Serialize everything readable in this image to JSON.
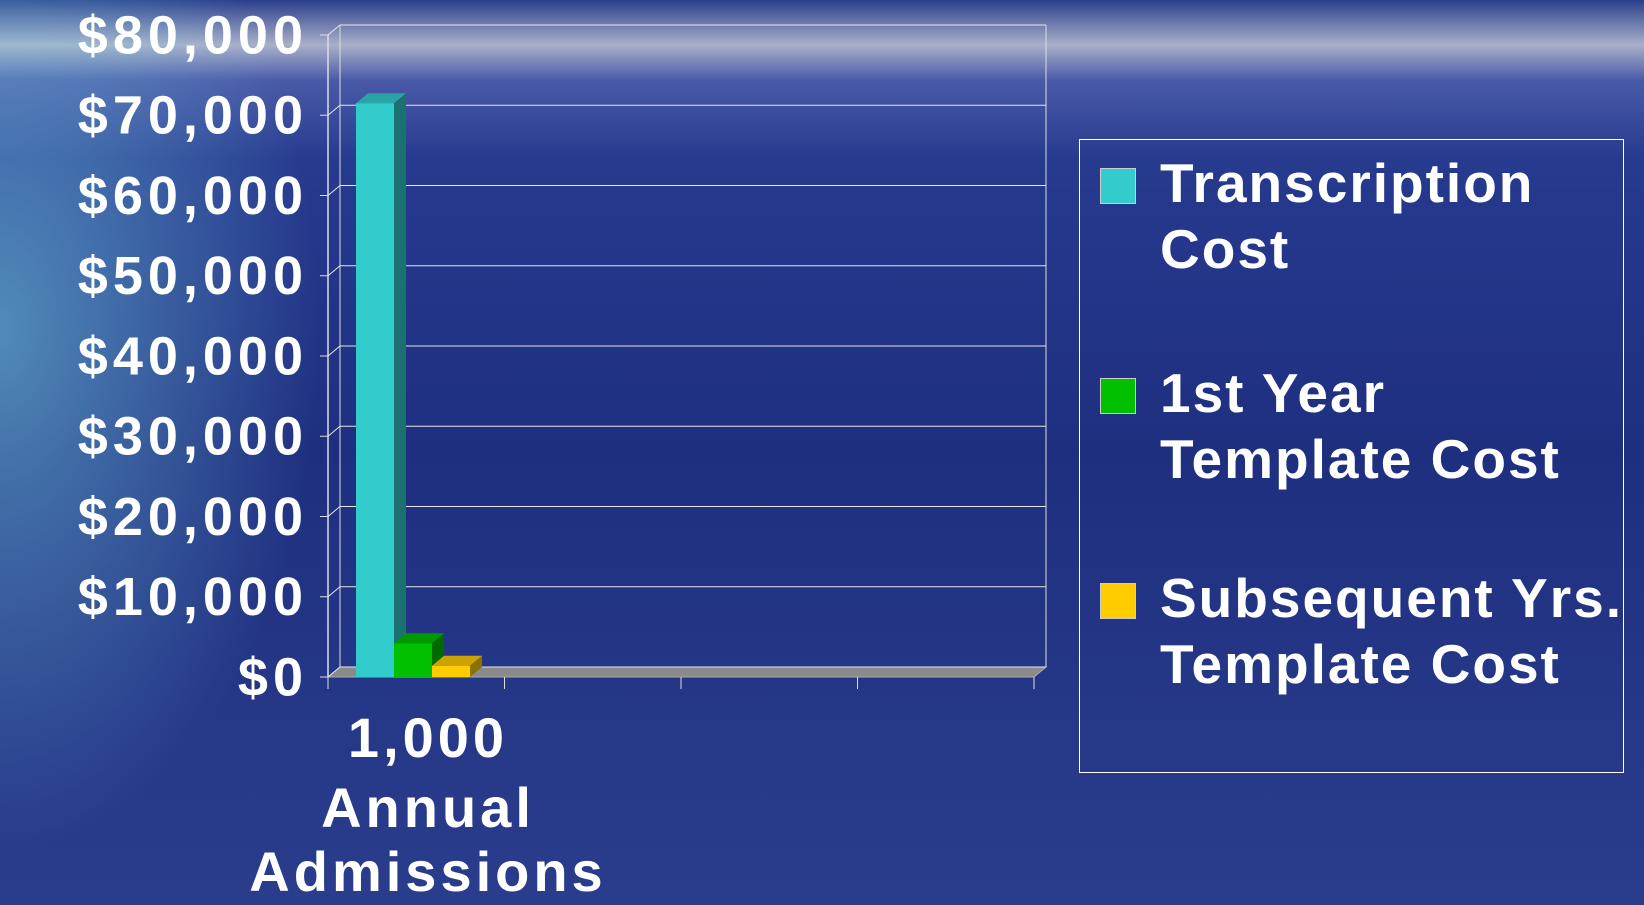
{
  "chart_data": {
    "type": "bar",
    "categories": [
      "1,000",
      null,
      null,
      null
    ],
    "x_label": "Annual Admissions",
    "series": [
      {
        "name": "Transcription Cost",
        "color": "#33cccc",
        "values": [
          71500,
          null,
          null,
          null
        ]
      },
      {
        "name": "1st Year Template Cost",
        "color": "#00c000",
        "values": [
          4200,
          null,
          null,
          null
        ]
      },
      {
        "name": "Subsequent Yrs. Template Cost",
        "color": "#ffcc00",
        "values": [
          1400,
          null,
          null,
          null
        ]
      }
    ],
    "ylim": [
      0,
      80000
    ],
    "yticks": [
      {
        "value": 0,
        "label": "$0"
      },
      {
        "value": 10000,
        "label": "$10,000"
      },
      {
        "value": 20000,
        "label": "$20,000"
      },
      {
        "value": 30000,
        "label": "$30,000"
      },
      {
        "value": 40000,
        "label": "$40,000"
      },
      {
        "value": 50000,
        "label": "$50,000"
      },
      {
        "value": 60000,
        "label": "$60,000"
      },
      {
        "value": 70000,
        "label": "$70,000"
      },
      {
        "value": 80000,
        "label": "$80,000"
      }
    ],
    "grid": true,
    "legend": "right"
  }
}
